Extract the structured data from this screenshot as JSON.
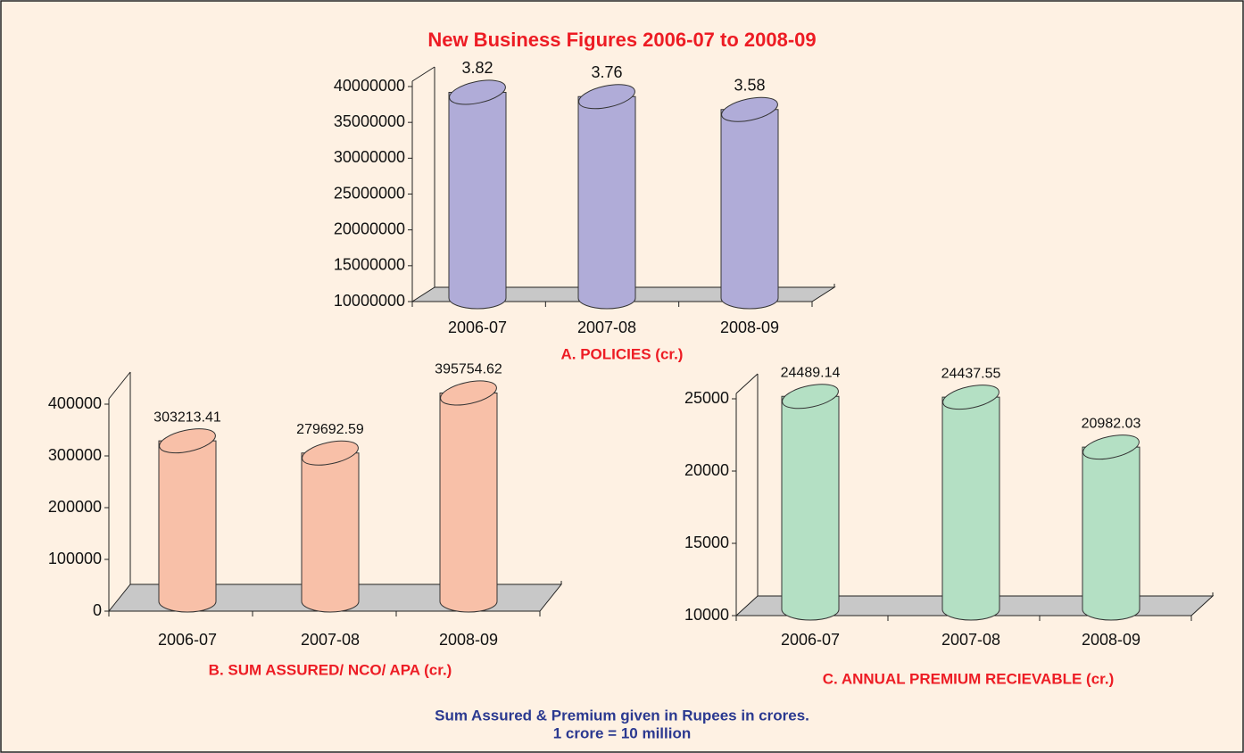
{
  "title": "New Business Figures 2006-07 to 2008-09",
  "chart_data": [
    {
      "type": "bar",
      "title": "A. POLICIES (cr.)",
      "categories": [
        "2006-07",
        "2007-08",
        "2008-09"
      ],
      "values": [
        38200000,
        37600000,
        35800000
      ],
      "value_labels": [
        "3.82",
        "3.76",
        "3.58"
      ],
      "color": "#b0acd8",
      "ylim": [
        10000000,
        40000000
      ],
      "yticks": [
        10000000,
        15000000,
        20000000,
        25000000,
        30000000,
        35000000,
        40000000
      ]
    },
    {
      "type": "bar",
      "title": "B. SUM ASSURED/ NCO/ APA (cr.)",
      "categories": [
        "2006-07",
        "2007-08",
        "2008-09"
      ],
      "values": [
        303213.41,
        279692.59,
        395754.62
      ],
      "color": "#f8c0a8",
      "ylim": [
        0,
        400000
      ],
      "yticks": [
        0,
        100000,
        200000,
        300000,
        400000
      ]
    },
    {
      "type": "bar",
      "title": "C. ANNUAL PREMIUM RECIEVABLE (cr.)",
      "categories": [
        "2006-07",
        "2007-08",
        "2008-09"
      ],
      "values": [
        24489.14,
        24437.55,
        20982.03
      ],
      "color": "#b4e0c4",
      "ylim": [
        10000,
        25000
      ],
      "yticks": [
        10000,
        15000,
        20000,
        25000
      ]
    }
  ],
  "footnote": [
    "Sum Assured & Premium given in Rupees in crores.",
    "1 crore = 10 million"
  ]
}
